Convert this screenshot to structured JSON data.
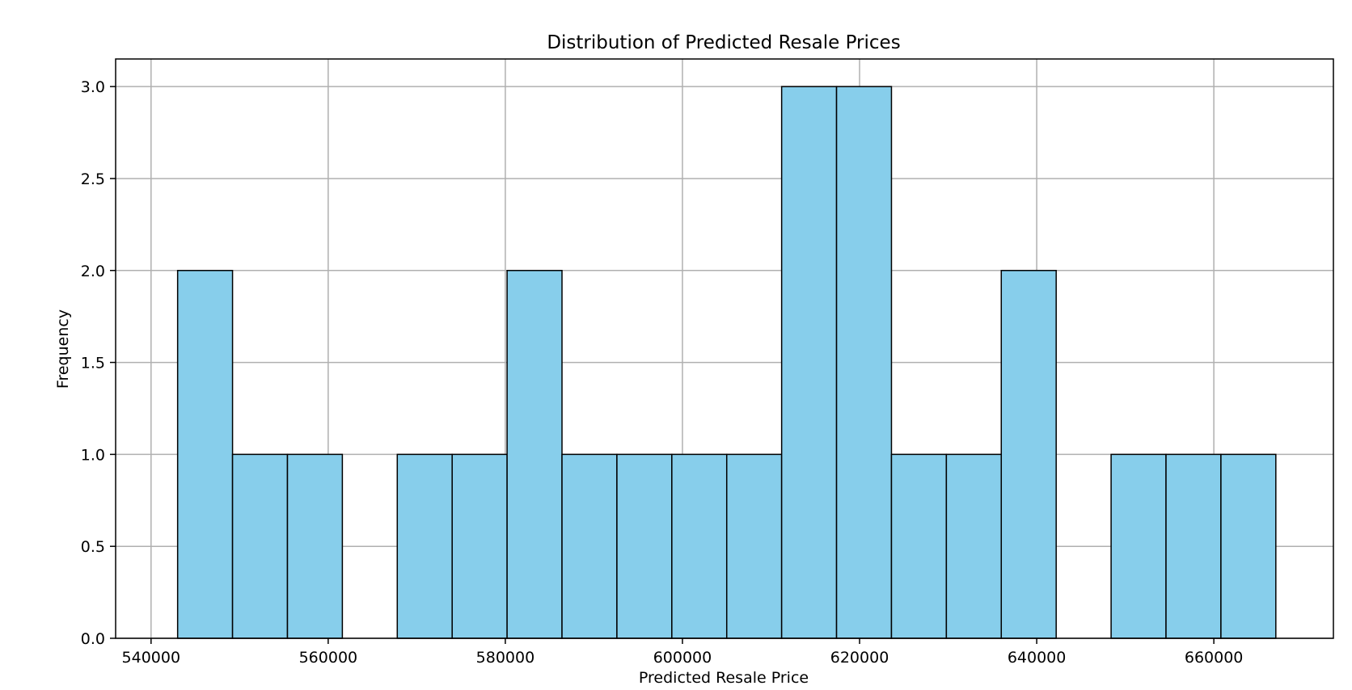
{
  "chart_data": {
    "type": "bar",
    "title": "Distribution of Predicted Resale Prices",
    "xlabel": "Predicted Resale Price",
    "ylabel": "Frequency",
    "xlim": [
      536000,
      673500
    ],
    "ylim": [
      0,
      3.15
    ],
    "x_ticks": [
      540000,
      560000,
      580000,
      600000,
      620000,
      640000,
      660000
    ],
    "y_ticks": [
      "0.0",
      "0.5",
      "1.0",
      "1.5",
      "2.0",
      "2.5",
      "3.0"
    ],
    "bins": [
      {
        "start": 543000,
        "end": 549200,
        "count": 2
      },
      {
        "start": 549200,
        "end": 555400,
        "count": 1
      },
      {
        "start": 555400,
        "end": 561600,
        "count": 1
      },
      {
        "start": 561600,
        "end": 567800,
        "count": 0
      },
      {
        "start": 567800,
        "end": 574000,
        "count": 1
      },
      {
        "start": 574000,
        "end": 580200,
        "count": 1
      },
      {
        "start": 580200,
        "end": 586400,
        "count": 2
      },
      {
        "start": 586400,
        "end": 592600,
        "count": 1
      },
      {
        "start": 592600,
        "end": 598800,
        "count": 1
      },
      {
        "start": 598800,
        "end": 605000,
        "count": 1
      },
      {
        "start": 605000,
        "end": 611200,
        "count": 1
      },
      {
        "start": 611200,
        "end": 617400,
        "count": 3
      },
      {
        "start": 617400,
        "end": 623600,
        "count": 3
      },
      {
        "start": 623600,
        "end": 629800,
        "count": 1
      },
      {
        "start": 629800,
        "end": 636000,
        "count": 1
      },
      {
        "start": 636000,
        "end": 642200,
        "count": 2
      },
      {
        "start": 642200,
        "end": 648400,
        "count": 0
      },
      {
        "start": 648400,
        "end": 654600,
        "count": 1
      },
      {
        "start": 654600,
        "end": 660800,
        "count": 1
      },
      {
        "start": 660800,
        "end": 667000,
        "count": 1
      }
    ],
    "grid": true,
    "bar_color": "#87ceeb",
    "edge_color": "#000000",
    "grid_color": "#b0b0b0"
  }
}
